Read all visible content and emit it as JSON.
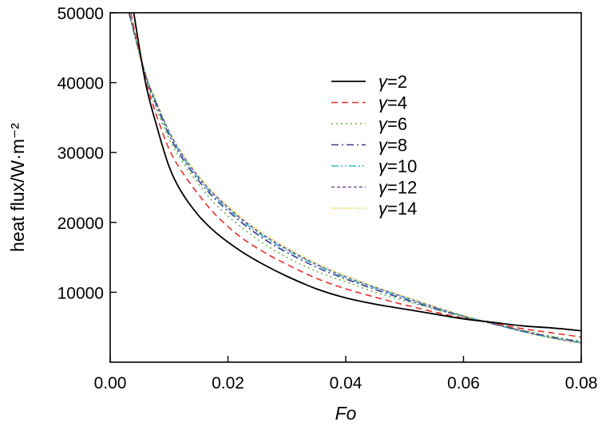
{
  "chart_data": {
    "type": "line",
    "xlabel": "Fo",
    "ylabel": "heat flux/W·m⁻²",
    "xlim": [
      0.0,
      0.08
    ],
    "ylim": [
      0,
      50000
    ],
    "xticks": [
      "0.00",
      "0.02",
      "0.04",
      "0.06",
      "0.08"
    ],
    "xtick_values": [
      0.0,
      0.02,
      0.04,
      0.06,
      0.08
    ],
    "yticks": [
      "10000",
      "20000",
      "30000",
      "40000",
      "50000"
    ],
    "ytick_values": [
      10000,
      20000,
      30000,
      40000,
      50000
    ],
    "grid": false,
    "legend_position": "top-right",
    "series": [
      {
        "name": "γ=2",
        "gamma": "γ",
        "value_text": "=2",
        "color": "#000000",
        "dash": "solid",
        "x": [
          0.004,
          0.006,
          0.008,
          0.01,
          0.012,
          0.015,
          0.018,
          0.022,
          0.026,
          0.03,
          0.035,
          0.04,
          0.045,
          0.05,
          0.055,
          0.06,
          0.065,
          0.07,
          0.075,
          0.08
        ],
        "y": [
          50000,
          40000,
          33500,
          28000,
          24500,
          21000,
          18500,
          16000,
          14000,
          12300,
          10500,
          9200,
          8300,
          7600,
          6900,
          6200,
          5700,
          5200,
          4900,
          4500
        ]
      },
      {
        "name": "γ=4",
        "gamma": "γ",
        "value_text": "=4",
        "color": "#e8302b",
        "dash": "dashed",
        "x": [
          0.0035,
          0.006,
          0.008,
          0.01,
          0.012,
          0.015,
          0.018,
          0.022,
          0.026,
          0.03,
          0.035,
          0.04,
          0.045,
          0.05,
          0.055,
          0.06,
          0.065,
          0.07,
          0.075,
          0.08
        ],
        "y": [
          50000,
          40500,
          35000,
          30500,
          27500,
          24000,
          21000,
          18000,
          15800,
          14000,
          12000,
          10500,
          9300,
          8200,
          7200,
          6300,
          5600,
          4800,
          4200,
          3600
        ]
      },
      {
        "name": "γ=6",
        "gamma": "γ",
        "value_text": "=6",
        "color": "#6ab04c",
        "dash": "dotted",
        "x": [
          0.0033,
          0.006,
          0.008,
          0.01,
          0.012,
          0.015,
          0.018,
          0.022,
          0.026,
          0.03,
          0.035,
          0.04,
          0.045,
          0.05,
          0.055,
          0.06,
          0.065,
          0.07,
          0.075,
          0.08
        ],
        "y": [
          50000,
          40800,
          36000,
          32000,
          29000,
          25500,
          22500,
          19500,
          17000,
          15000,
          13000,
          11500,
          10000,
          8800,
          7600,
          6500,
          5600,
          4600,
          3700,
          3000
        ]
      },
      {
        "name": "γ=8",
        "gamma": "γ",
        "value_text": "=8",
        "color": "#3c3c8c",
        "dash": "dashdot",
        "x": [
          0.0032,
          0.006,
          0.008,
          0.01,
          0.012,
          0.015,
          0.018,
          0.022,
          0.026,
          0.03,
          0.035,
          0.04,
          0.045,
          0.05,
          0.055,
          0.06,
          0.065,
          0.07,
          0.075,
          0.08
        ],
        "y": [
          50000,
          41000,
          36500,
          32500,
          29500,
          26000,
          23200,
          20200,
          17700,
          15700,
          13600,
          11900,
          10400,
          9000,
          7700,
          6500,
          5500,
          4500,
          3600,
          2900
        ]
      },
      {
        "name": "γ=10",
        "gamma": "γ",
        "value_text": "=10",
        "color": "#3fb8c4",
        "dash": "dashdotdot",
        "x": [
          0.0032,
          0.006,
          0.008,
          0.01,
          0.012,
          0.015,
          0.018,
          0.022,
          0.026,
          0.03,
          0.035,
          0.04,
          0.045,
          0.05,
          0.055,
          0.06,
          0.065,
          0.07,
          0.075,
          0.08
        ],
        "y": [
          50000,
          41100,
          36700,
          32800,
          29800,
          26300,
          23500,
          20500,
          18000,
          16000,
          13900,
          12100,
          10600,
          9200,
          7800,
          6600,
          5500,
          4400,
          3500,
          2800
        ]
      },
      {
        "name": "γ=12",
        "gamma": "γ",
        "value_text": "=12",
        "color": "#7a4f9e",
        "dash": "shortdash",
        "x": [
          0.0032,
          0.006,
          0.008,
          0.01,
          0.012,
          0.015,
          0.018,
          0.022,
          0.026,
          0.03,
          0.035,
          0.04,
          0.045,
          0.05,
          0.055,
          0.06,
          0.065,
          0.07,
          0.075,
          0.08
        ],
        "y": [
          50000,
          41200,
          36800,
          33000,
          30000,
          26500,
          23700,
          20700,
          18200,
          16200,
          14000,
          12200,
          10700,
          9300,
          7900,
          6600,
          5500,
          4400,
          3500,
          2750
        ]
      },
      {
        "name": "γ=14",
        "gamma": "γ",
        "value_text": "=14",
        "color": "#e5c82a",
        "dash": "finedot",
        "x": [
          0.0032,
          0.006,
          0.008,
          0.01,
          0.012,
          0.015,
          0.018,
          0.022,
          0.026,
          0.03,
          0.035,
          0.04,
          0.045,
          0.05,
          0.055,
          0.06,
          0.065,
          0.07,
          0.075,
          0.08
        ],
        "y": [
          50000,
          41300,
          37000,
          33100,
          30200,
          26700,
          23900,
          20900,
          18400,
          16400,
          14200,
          12400,
          10800,
          9400,
          8000,
          6700,
          5500,
          4400,
          3400,
          2700
        ]
      }
    ]
  }
}
